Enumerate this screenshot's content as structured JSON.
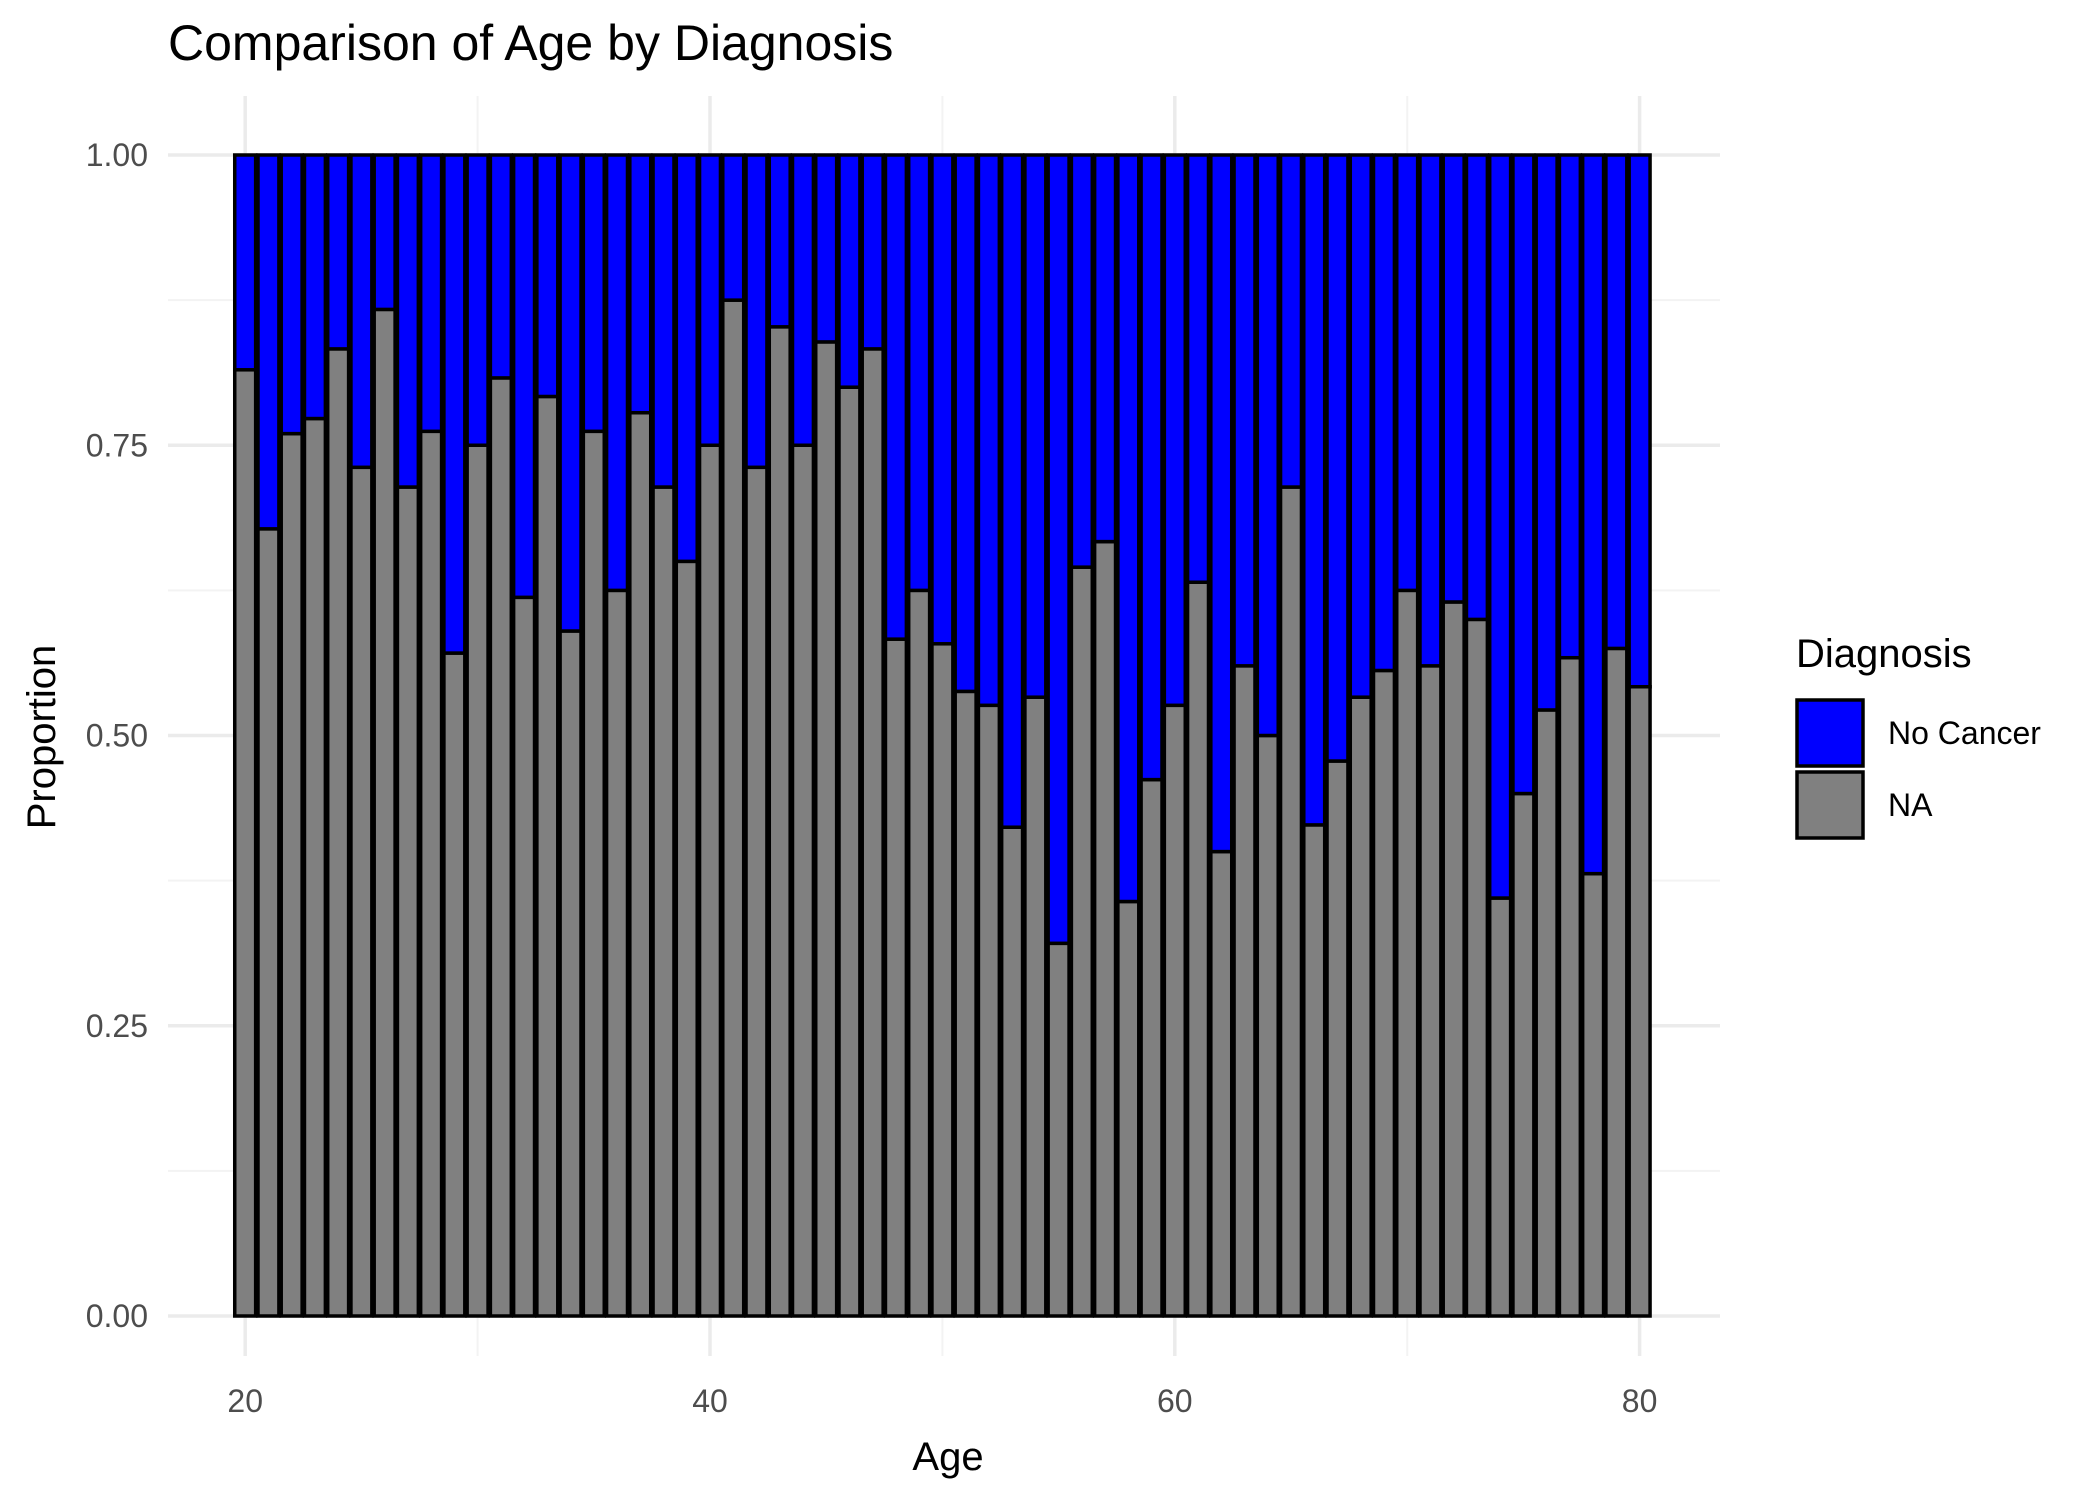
{
  "chart_data": {
    "type": "bar",
    "stacked": "fill",
    "title": "Comparison of Age by Diagnosis",
    "xlabel": "Age",
    "ylabel": "Proportion",
    "xlim": [
      18.5,
      81.5
    ],
    "ylim": [
      0,
      1.05
    ],
    "xticks": [
      20,
      40,
      60,
      80
    ],
    "xtick_labels": [
      "20",
      "40",
      "60",
      "80"
    ],
    "yticks": [
      0,
      0.25,
      0.5,
      0.75,
      1
    ],
    "ytick_labels": [
      "0.00",
      "0.25",
      "0.50",
      "0.75",
      "1.00"
    ],
    "grid": true,
    "legend": {
      "title": "Diagnosis",
      "position": "right",
      "items": [
        {
          "label": "No Cancer",
          "color": "#0000ff"
        },
        {
          "label": "NA",
          "color": "#808080"
        }
      ]
    },
    "x": [
      20,
      21,
      22,
      23,
      24,
      25,
      26,
      27,
      28,
      29,
      30,
      31,
      32,
      33,
      34,
      35,
      36,
      37,
      38,
      39,
      40,
      41,
      42,
      43,
      44,
      45,
      46,
      47,
      48,
      49,
      50,
      51,
      52,
      53,
      54,
      55,
      56,
      57,
      58,
      59,
      60,
      61,
      62,
      63,
      64,
      65,
      66,
      67,
      68,
      69,
      70,
      71,
      72,
      73,
      74,
      75,
      76,
      77,
      78,
      79,
      80
    ],
    "series": [
      {
        "name": "No Cancer",
        "color": "#0000ff",
        "values": [
          0.185,
          0.322,
          0.24,
          0.227,
          0.167,
          0.269,
          0.133,
          0.286,
          0.238,
          0.429,
          0.25,
          0.192,
          0.381,
          0.208,
          0.41,
          0.238,
          0.375,
          0.222,
          0.286,
          0.35,
          0.25,
          0.125,
          0.269,
          0.148,
          0.25,
          0.161,
          0.2,
          0.167,
          0.417,
          0.375,
          0.421,
          0.462,
          0.474,
          0.579,
          0.467,
          0.679,
          0.355,
          0.333,
          0.643,
          0.538,
          0.474,
          0.368,
          0.6,
          0.44,
          0.5,
          0.286,
          0.577,
          0.522,
          0.467,
          0.444,
          0.375,
          0.44,
          0.385,
          0.4,
          0.64,
          0.55,
          0.478,
          0.433,
          0.619,
          0.425,
          0.458
        ]
      },
      {
        "name": "NA",
        "color": "#808080",
        "values": [
          0.815,
          0.678,
          0.76,
          0.773,
          0.833,
          0.731,
          0.867,
          0.714,
          0.762,
          0.571,
          0.75,
          0.808,
          0.619,
          0.792,
          0.59,
          0.762,
          0.625,
          0.778,
          0.714,
          0.65,
          0.75,
          0.875,
          0.731,
          0.852,
          0.75,
          0.839,
          0.8,
          0.833,
          0.583,
          0.625,
          0.579,
          0.538,
          0.526,
          0.421,
          0.533,
          0.321,
          0.645,
          0.667,
          0.357,
          0.462,
          0.526,
          0.632,
          0.4,
          0.56,
          0.5,
          0.714,
          0.423,
          0.478,
          0.533,
          0.556,
          0.625,
          0.56,
          0.615,
          0.6,
          0.36,
          0.45,
          0.522,
          0.567,
          0.381,
          0.575,
          0.542
        ]
      }
    ]
  }
}
